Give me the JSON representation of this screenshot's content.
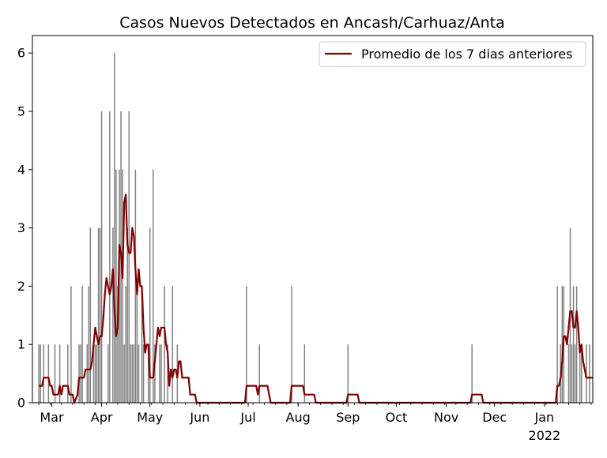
{
  "chart_data": {
    "type": "bar",
    "title": "Casos Nuevos Detectados en Ancash/Carhuaz/Anta",
    "xlabel": "",
    "ylabel": "",
    "date_range": [
      "2021-02-17",
      "2022-01-31"
    ],
    "ylim": [
      0,
      6.3
    ],
    "yticks": [
      0,
      1,
      2,
      3,
      4,
      5,
      6
    ],
    "xticks": [
      {
        "label": "Mar",
        "date": "2021-03-01"
      },
      {
        "label": "Apr",
        "date": "2021-04-01"
      },
      {
        "label": "May",
        "date": "2021-05-01"
      },
      {
        "label": "Jun",
        "date": "2021-06-01"
      },
      {
        "label": "Jul",
        "date": "2021-07-01"
      },
      {
        "label": "Aug",
        "date": "2021-08-01"
      },
      {
        "label": "Sep",
        "date": "2021-09-01"
      },
      {
        "label": "Oct",
        "date": "2021-10-01"
      },
      {
        "label": "Nov",
        "date": "2021-11-01"
      },
      {
        "label": "Dec",
        "date": "2021-12-01"
      },
      {
        "label": "Jan",
        "date": "2022-01-01",
        "sublabel": "2022"
      }
    ],
    "bar_color": "#808080",
    "line_color": "#800000",
    "legend": {
      "placement": "top-right",
      "entries": [
        {
          "label": "Promedio de los 7 dias anteriores",
          "color": "#800000"
        }
      ]
    },
    "series": [
      {
        "kind": "bar",
        "points": [
          [
            "2021-02-21",
            1
          ],
          [
            "2021-02-22",
            1
          ],
          [
            "2021-02-24",
            1
          ],
          [
            "2021-02-27",
            1
          ],
          [
            "2021-03-03",
            1
          ],
          [
            "2021-03-06",
            1
          ],
          [
            "2021-03-11",
            1
          ],
          [
            "2021-03-13",
            2
          ],
          [
            "2021-03-18",
            1
          ],
          [
            "2021-03-19",
            1
          ],
          [
            "2021-03-20",
            2
          ],
          [
            "2021-03-23",
            1
          ],
          [
            "2021-03-24",
            2
          ],
          [
            "2021-03-25",
            3
          ],
          [
            "2021-03-27",
            1
          ],
          [
            "2021-03-28",
            1
          ],
          [
            "2021-03-29",
            1
          ],
          [
            "2021-03-30",
            3
          ],
          [
            "2021-03-31",
            3
          ],
          [
            "2021-04-01",
            5
          ],
          [
            "2021-04-05",
            1
          ],
          [
            "2021-04-06",
            5
          ],
          [
            "2021-04-08",
            3
          ],
          [
            "2021-04-09",
            6
          ],
          [
            "2021-04-10",
            4
          ],
          [
            "2021-04-11",
            2
          ],
          [
            "2021-04-12",
            4
          ],
          [
            "2021-04-13",
            5
          ],
          [
            "2021-04-14",
            4
          ],
          [
            "2021-04-15",
            1
          ],
          [
            "2021-04-16",
            2
          ],
          [
            "2021-04-17",
            3
          ],
          [
            "2021-04-18",
            5
          ],
          [
            "2021-04-19",
            1
          ],
          [
            "2021-04-20",
            1
          ],
          [
            "2021-04-21",
            1
          ],
          [
            "2021-04-22",
            4
          ],
          [
            "2021-04-23",
            2
          ],
          [
            "2021-04-24",
            1
          ],
          [
            "2021-04-26",
            2
          ],
          [
            "2021-04-27",
            1
          ],
          [
            "2021-04-30",
            1
          ],
          [
            "2021-05-01",
            3
          ],
          [
            "2021-05-03",
            4
          ],
          [
            "2021-05-04",
            1
          ],
          [
            "2021-05-07",
            1
          ],
          [
            "2021-05-08",
            1
          ],
          [
            "2021-05-10",
            2
          ],
          [
            "2021-05-12",
            1
          ],
          [
            "2021-05-15",
            2
          ],
          [
            "2021-05-18",
            1
          ],
          [
            "2021-06-30",
            2
          ],
          [
            "2021-07-08",
            1
          ],
          [
            "2021-07-28",
            2
          ],
          [
            "2021-08-05",
            1
          ],
          [
            "2021-09-01",
            1
          ],
          [
            "2021-11-17",
            1
          ],
          [
            "2022-01-09",
            2
          ],
          [
            "2022-01-11",
            1
          ],
          [
            "2022-01-12",
            2
          ],
          [
            "2022-01-13",
            2
          ],
          [
            "2022-01-16",
            1
          ],
          [
            "2022-01-17",
            3
          ],
          [
            "2022-01-18",
            1
          ],
          [
            "2022-01-19",
            2
          ],
          [
            "2022-01-20",
            1
          ],
          [
            "2022-01-21",
            2
          ],
          [
            "2022-01-23",
            1
          ],
          [
            "2022-01-24",
            1
          ],
          [
            "2022-01-27",
            1
          ],
          [
            "2022-01-29",
            1
          ]
        ]
      },
      {
        "kind": "line",
        "name": "Promedio de los 7 dias anteriores",
        "points": [
          [
            "2021-02-21",
            0.29
          ],
          [
            "2021-02-23",
            0.29
          ],
          [
            "2021-02-24",
            0.43
          ],
          [
            "2021-02-27",
            0.43
          ],
          [
            "2021-02-28",
            0.29
          ],
          [
            "2021-03-01",
            0.29
          ],
          [
            "2021-03-02",
            0.14
          ],
          [
            "2021-03-05",
            0.14
          ],
          [
            "2021-03-06",
            0.29
          ],
          [
            "2021-03-07",
            0.14
          ],
          [
            "2021-03-08",
            0.29
          ],
          [
            "2021-03-11",
            0.29
          ],
          [
            "2021-03-12",
            0.14
          ],
          [
            "2021-03-14",
            0.14
          ],
          [
            "2021-03-15",
            0.0
          ],
          [
            "2021-03-17",
            0.14
          ],
          [
            "2021-03-18",
            0.43
          ],
          [
            "2021-03-21",
            0.43
          ],
          [
            "2021-03-22",
            0.57
          ],
          [
            "2021-03-25",
            0.57
          ],
          [
            "2021-03-26",
            0.71
          ],
          [
            "2021-03-27",
            1.0
          ],
          [
            "2021-03-28",
            1.29
          ],
          [
            "2021-03-29",
            1.14
          ],
          [
            "2021-03-30",
            1.0
          ],
          [
            "2021-03-31",
            1.14
          ],
          [
            "2021-04-01",
            1.14
          ],
          [
            "2021-04-02",
            1.43
          ],
          [
            "2021-04-03",
            1.86
          ],
          [
            "2021-04-04",
            2.14
          ],
          [
            "2021-04-05",
            2.0
          ],
          [
            "2021-04-06",
            1.86
          ],
          [
            "2021-04-07",
            2.0
          ],
          [
            "2021-04-08",
            2.29
          ],
          [
            "2021-04-09",
            1.57
          ],
          [
            "2021-04-10",
            1.14
          ],
          [
            "2021-04-11",
            1.29
          ],
          [
            "2021-04-12",
            2.71
          ],
          [
            "2021-04-13",
            2.57
          ],
          [
            "2021-04-14",
            2.14
          ],
          [
            "2021-04-15",
            3.43
          ],
          [
            "2021-04-16",
            3.57
          ],
          [
            "2021-04-17",
            2.71
          ],
          [
            "2021-04-18",
            2.57
          ],
          [
            "2021-04-19",
            2.57
          ],
          [
            "2021-04-20",
            3.0
          ],
          [
            "2021-04-21",
            2.86
          ],
          [
            "2021-04-22",
            2.29
          ],
          [
            "2021-04-23",
            1.86
          ],
          [
            "2021-04-24",
            2.29
          ],
          [
            "2021-04-25",
            2.0
          ],
          [
            "2021-04-26",
            2.0
          ],
          [
            "2021-04-27",
            1.29
          ],
          [
            "2021-04-28",
            0.86
          ],
          [
            "2021-04-29",
            1.0
          ],
          [
            "2021-04-30",
            1.0
          ],
          [
            "2021-05-01",
            0.43
          ],
          [
            "2021-05-03",
            0.43
          ],
          [
            "2021-05-04",
            0.71
          ],
          [
            "2021-05-05",
            1.0
          ],
          [
            "2021-05-06",
            1.29
          ],
          [
            "2021-05-07",
            1.14
          ],
          [
            "2021-05-08",
            1.29
          ],
          [
            "2021-05-10",
            1.29
          ],
          [
            "2021-05-11",
            1.0
          ],
          [
            "2021-05-12",
            0.86
          ],
          [
            "2021-05-13",
            0.29
          ],
          [
            "2021-05-14",
            0.57
          ],
          [
            "2021-05-15",
            0.43
          ],
          [
            "2021-05-16",
            0.57
          ],
          [
            "2021-05-17",
            0.57
          ],
          [
            "2021-05-18",
            0.43
          ],
          [
            "2021-05-19",
            0.71
          ],
          [
            "2021-05-20",
            0.71
          ],
          [
            "2021-05-21",
            0.43
          ],
          [
            "2021-05-25",
            0.43
          ],
          [
            "2021-05-26",
            0.14
          ],
          [
            "2021-05-29",
            0.14
          ],
          [
            "2021-05-30",
            0.0
          ],
          [
            "2021-06-29",
            0.0
          ],
          [
            "2021-06-30",
            0.29
          ],
          [
            "2021-07-06",
            0.29
          ],
          [
            "2021-07-07",
            0.14
          ],
          [
            "2021-07-08",
            0.29
          ],
          [
            "2021-07-13",
            0.29
          ],
          [
            "2021-07-14",
            0.14
          ],
          [
            "2021-07-15",
            0.0
          ],
          [
            "2021-07-27",
            0.0
          ],
          [
            "2021-07-28",
            0.29
          ],
          [
            "2021-08-04",
            0.29
          ],
          [
            "2021-08-05",
            0.14
          ],
          [
            "2021-08-11",
            0.14
          ],
          [
            "2021-08-12",
            0.0
          ],
          [
            "2021-08-31",
            0.0
          ],
          [
            "2021-09-01",
            0.14
          ],
          [
            "2021-09-07",
            0.14
          ],
          [
            "2021-09-08",
            0.0
          ],
          [
            "2021-11-16",
            0.0
          ],
          [
            "2021-11-17",
            0.14
          ],
          [
            "2021-11-23",
            0.14
          ],
          [
            "2021-11-24",
            0.0
          ],
          [
            "2022-01-08",
            0.0
          ],
          [
            "2022-01-09",
            0.29
          ],
          [
            "2022-01-10",
            0.29
          ],
          [
            "2022-01-11",
            0.43
          ],
          [
            "2022-01-12",
            0.71
          ],
          [
            "2022-01-13",
            1.14
          ],
          [
            "2022-01-14",
            1.14
          ],
          [
            "2022-01-15",
            1.0
          ],
          [
            "2022-01-16",
            1.29
          ],
          [
            "2022-01-17",
            1.57
          ],
          [
            "2022-01-18",
            1.57
          ],
          [
            "2022-01-19",
            1.29
          ],
          [
            "2022-01-20",
            1.29
          ],
          [
            "2022-01-21",
            1.57
          ],
          [
            "2022-01-22",
            1.29
          ],
          [
            "2022-01-23",
            0.86
          ],
          [
            "2022-01-24",
            1.0
          ],
          [
            "2022-01-25",
            0.71
          ],
          [
            "2022-01-26",
            0.57
          ],
          [
            "2022-01-27",
            0.43
          ],
          [
            "2022-01-31",
            0.43
          ]
        ]
      }
    ]
  }
}
